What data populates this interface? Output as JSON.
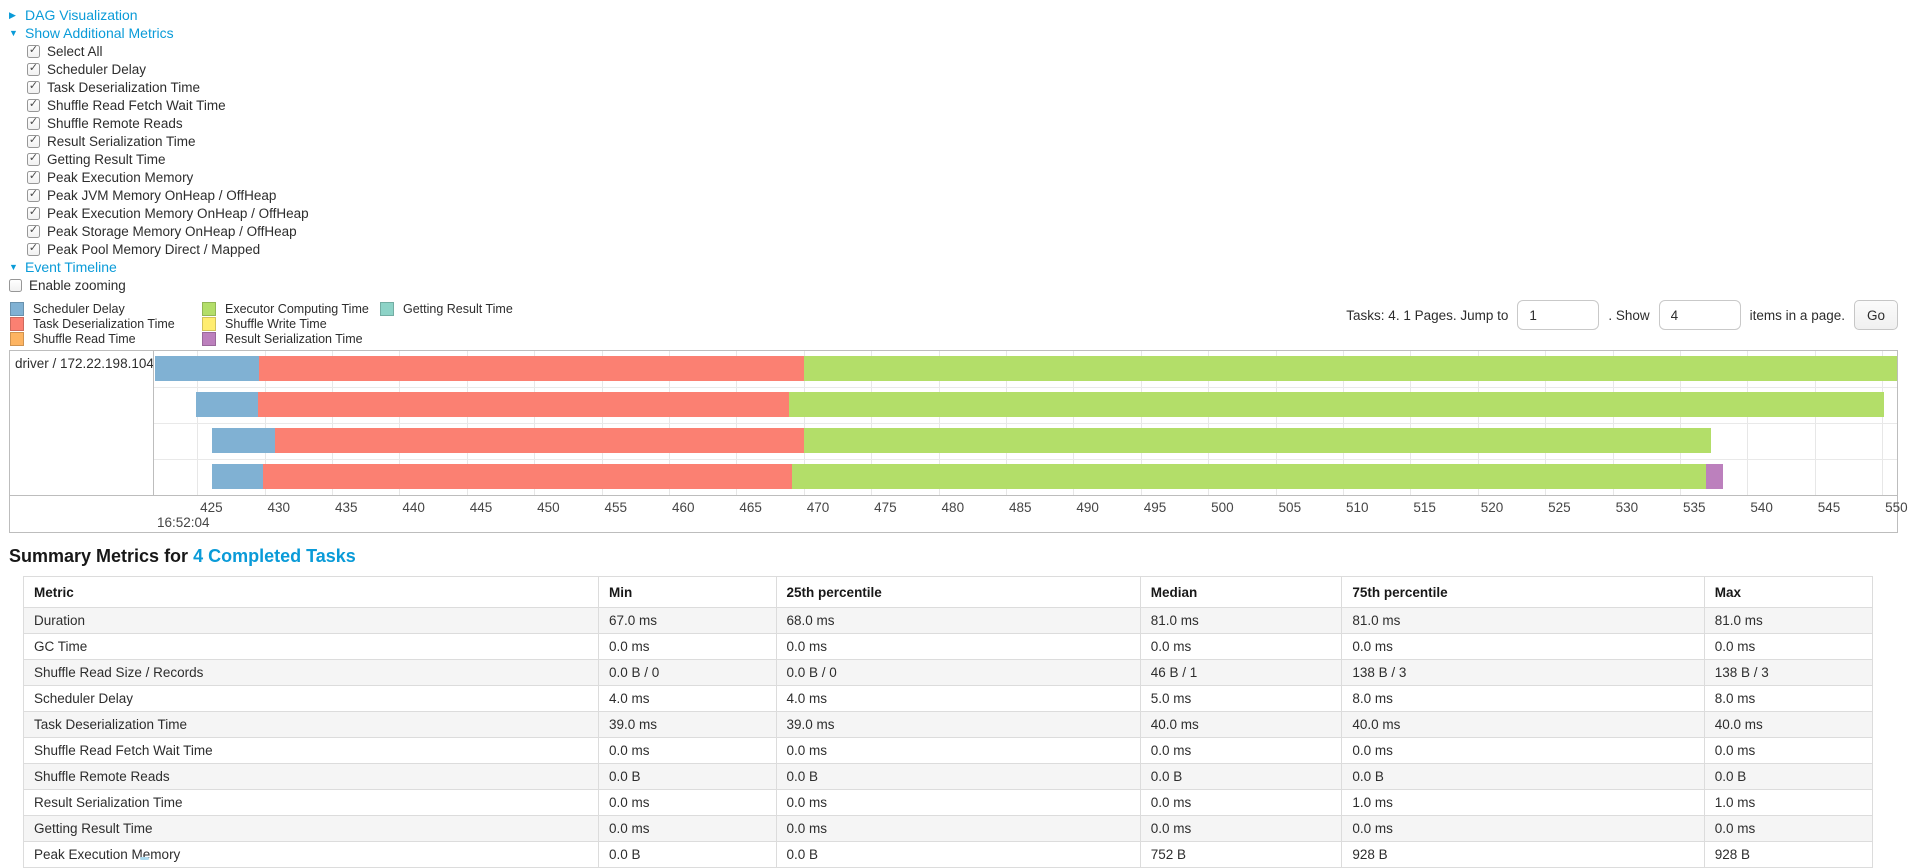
{
  "colors": {
    "link": "#0a9bd8",
    "scheduler_delay": "#80B1D3",
    "task_deserialization": "#FB8072",
    "shuffle_read": "#FDB462",
    "executor_computing": "#B3DE69",
    "shuffle_write": "#FFED6F",
    "result_serialization": "#BC80BD",
    "getting_result": "#8DD3C7"
  },
  "icons": {
    "collapsed": "▶",
    "expanded": "▼"
  },
  "sections": {
    "dag": {
      "label": "DAG Visualization",
      "collapsed": true
    },
    "metrics": {
      "label": "Show Additional Metrics",
      "items": [
        {
          "label": "Select All",
          "checked": true
        },
        {
          "label": "Scheduler Delay",
          "checked": true
        },
        {
          "label": "Task Deserialization Time",
          "checked": true
        },
        {
          "label": "Shuffle Read Fetch Wait Time",
          "checked": true
        },
        {
          "label": "Shuffle Remote Reads",
          "checked": true
        },
        {
          "label": "Result Serialization Time",
          "checked": true
        },
        {
          "label": "Getting Result Time",
          "checked": true
        },
        {
          "label": "Peak Execution Memory",
          "checked": true
        },
        {
          "label": "Peak JVM Memory OnHeap / OffHeap",
          "checked": true
        },
        {
          "label": "Peak Execution Memory OnHeap / OffHeap",
          "checked": true
        },
        {
          "label": "Peak Storage Memory OnHeap / OffHeap",
          "checked": true
        },
        {
          "label": "Peak Pool Memory Direct / Mapped",
          "checked": true
        }
      ]
    },
    "timeline": {
      "label": "Event Timeline",
      "enable_zooming_label": "Enable zooming",
      "enable_zooming_checked": false
    }
  },
  "legend": {
    "columns": [
      [
        {
          "label": "Scheduler Delay",
          "key": "scheduler_delay"
        },
        {
          "label": "Task Deserialization Time",
          "key": "task_deserialization"
        },
        {
          "label": "Shuffle Read Time",
          "key": "shuffle_read"
        }
      ],
      [
        {
          "label": "Executor Computing Time",
          "key": "executor_computing"
        },
        {
          "label": "Shuffle Write Time",
          "key": "shuffle_write"
        },
        {
          "label": "Result Serialization Time",
          "key": "result_serialization"
        }
      ],
      [
        {
          "label": "Getting Result Time",
          "key": "getting_result"
        }
      ]
    ]
  },
  "pagination": {
    "summary": "Tasks: 4. 1 Pages. Jump to",
    "jump_value": "1",
    "show_label": ". Show",
    "show_value": "4",
    "items_label": "items in a page.",
    "go_label": "Go"
  },
  "chart_data": {
    "type": "timeline",
    "group_label": "driver / 172.22.198.104",
    "time_label": "16:52:04",
    "axis": {
      "min": 421.8,
      "max": 551.1,
      "tick_start": 425,
      "tick_step": 5,
      "tick_end": 550,
      "unit": "ms"
    },
    "tasks": [
      {
        "segments": [
          {
            "key": "scheduler_delay",
            "start": 421.9,
            "end": 429.6
          },
          {
            "key": "task_deserialization",
            "start": 429.6,
            "end": 470.0
          },
          {
            "key": "executor_computing",
            "start": 470.0,
            "end": 551.1
          }
        ]
      },
      {
        "segments": [
          {
            "key": "scheduler_delay",
            "start": 424.9,
            "end": 429.5
          },
          {
            "key": "task_deserialization",
            "start": 429.5,
            "end": 468.9
          },
          {
            "key": "executor_computing",
            "start": 468.9,
            "end": 550.1
          }
        ]
      },
      {
        "segments": [
          {
            "key": "scheduler_delay",
            "start": 426.1,
            "end": 430.8
          },
          {
            "key": "task_deserialization",
            "start": 430.8,
            "end": 470.0
          },
          {
            "key": "executor_computing",
            "start": 470.0,
            "end": 537.3
          }
        ]
      },
      {
        "segments": [
          {
            "key": "scheduler_delay",
            "start": 426.1,
            "end": 429.9
          },
          {
            "key": "task_deserialization",
            "start": 429.9,
            "end": 469.1
          },
          {
            "key": "executor_computing",
            "start": 469.1,
            "end": 536.9
          },
          {
            "key": "result_serialization",
            "start": 536.9,
            "end": 538.2
          }
        ]
      }
    ]
  },
  "summary": {
    "title_prefix": "Summary Metrics for",
    "title_link": "4 Completed Tasks"
  },
  "table": {
    "headers": [
      "Metric",
      "Min",
      "25th percentile",
      "Median",
      "75th percentile",
      "Max"
    ],
    "rows": [
      {
        "metric": "Duration",
        "values": [
          "67.0 ms",
          "68.0 ms",
          "81.0 ms",
          "81.0 ms",
          "81.0 ms"
        ]
      },
      {
        "metric": "GC Time",
        "values": [
          "0.0 ms",
          "0.0 ms",
          "0.0 ms",
          "0.0 ms",
          "0.0 ms"
        ]
      },
      {
        "metric": "Shuffle Read Size / Records",
        "values": [
          "0.0 B / 0",
          "0.0 B / 0",
          "46 B / 1",
          "138 B / 3",
          "138 B / 3"
        ]
      },
      {
        "metric": "Scheduler Delay",
        "values": [
          "4.0 ms",
          "4.0 ms",
          "5.0 ms",
          "8.0 ms",
          "8.0 ms"
        ]
      },
      {
        "metric": "Task Deserialization Time",
        "values": [
          "39.0 ms",
          "39.0 ms",
          "40.0 ms",
          "40.0 ms",
          "40.0 ms"
        ]
      },
      {
        "metric": "Shuffle Read Fetch Wait Time",
        "values": [
          "0.0 ms",
          "0.0 ms",
          "0.0 ms",
          "0.0 ms",
          "0.0 ms"
        ]
      },
      {
        "metric": "Shuffle Remote Reads",
        "values": [
          "0.0 B",
          "0.0 B",
          "0.0 B",
          "0.0 B",
          "0.0 B"
        ]
      },
      {
        "metric": "Result Serialization Time",
        "values": [
          "0.0 ms",
          "0.0 ms",
          "0.0 ms",
          "1.0 ms",
          "1.0 ms"
        ]
      },
      {
        "metric": "Getting Result Time",
        "values": [
          "0.0 ms",
          "0.0 ms",
          "0.0 ms",
          "0.0 ms",
          "0.0 ms"
        ]
      },
      {
        "metric": "Peak Execution Memory",
        "values": [
          "0.0 B",
          "0.0 B",
          "752 B",
          "928 B",
          "928 B"
        ]
      }
    ]
  }
}
